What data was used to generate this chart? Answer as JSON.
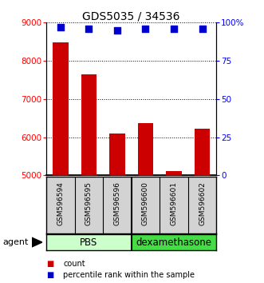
{
  "title": "GDS5035 / 34536",
  "samples": [
    "GSM596594",
    "GSM596595",
    "GSM596596",
    "GSM596600",
    "GSM596601",
    "GSM596602"
  ],
  "counts": [
    8490,
    7650,
    6100,
    6380,
    5120,
    6220
  ],
  "percentiles": [
    97,
    96,
    95,
    96,
    96,
    96
  ],
  "bar_color": "#cc0000",
  "dot_color": "#0000cc",
  "ylim_left": [
    5000,
    9000
  ],
  "ylim_right": [
    0,
    100
  ],
  "yticks_left": [
    5000,
    6000,
    7000,
    8000,
    9000
  ],
  "yticks_right": [
    0,
    25,
    50,
    75,
    100
  ],
  "yticklabels_right": [
    "0",
    "25",
    "50",
    "75",
    "100%"
  ],
  "pbs_color_light": "#ccffcc",
  "pbs_color": "#ccffcc",
  "dexa_color": "#44dd44",
  "label_box_color": "#d3d3d3",
  "background_color": "#ffffff",
  "bar_width": 0.55,
  "dot_size": 30,
  "groups": [
    {
      "label": "PBS",
      "cols": [
        0,
        1,
        2
      ]
    },
    {
      "label": "dexamethasone",
      "cols": [
        3,
        4,
        5
      ]
    }
  ],
  "legend_items": [
    {
      "label": "count",
      "color": "#cc0000"
    },
    {
      "label": "percentile rank within the sample",
      "color": "#0000cc"
    }
  ]
}
